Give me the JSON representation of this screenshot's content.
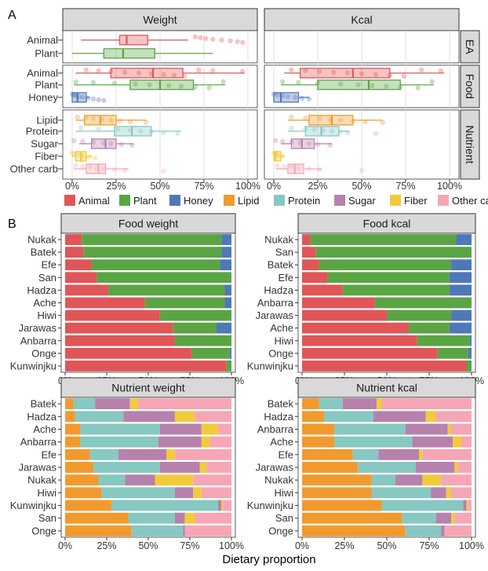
{
  "figure": {
    "panel_a_label": "A",
    "panel_b_label": "B",
    "x_axis_title": "Dietary proportion"
  },
  "colors": {
    "Animal": "#E05658",
    "Plant": "#5BA444",
    "Honey": "#4F78B6",
    "Lipid": "#F29A2E",
    "Protein": "#87C8C2",
    "Sugar": "#B781AE",
    "Fiber": "#F2CB3B",
    "Other carb": "#F6A6B5"
  },
  "legend": [
    "Animal",
    "Plant",
    "Honey",
    "Lipid",
    "Protein",
    "Sugar",
    "Fiber",
    "Other carb"
  ],
  "chart_data": [
    {
      "type": "boxplot",
      "panel": "A",
      "columns": [
        "Weight",
        "Kcal"
      ],
      "row_groups": [
        "EA",
        "Food",
        "Nutrient"
      ],
      "x_ticks": [
        "0%",
        "25%",
        "50%",
        "75%",
        "100%"
      ],
      "xlim": [
        0,
        1
      ],
      "grid": true,
      "groups": [
        {
          "name": "EA",
          "rows": [
            {
              "label": "Animal",
              "color_key": "Animal",
              "Weight": {
                "min": 0.05,
                "q1": 0.27,
                "med": 0.31,
                "q3": 0.43,
                "max": 0.66,
                "points": [
                  0.7,
                  0.73,
                  0.76,
                  0.8,
                  0.85,
                  0.9,
                  0.94,
                  0.97
                ]
              },
              "Kcal": null
            },
            {
              "label": "Plant",
              "color_key": "Plant",
              "Weight": {
                "min": 0.0,
                "q1": 0.18,
                "med": 0.29,
                "q3": 0.47,
                "max": 0.8,
                "points": []
              },
              "Kcal": null
            }
          ]
        },
        {
          "name": "Food",
          "rows": [
            {
              "label": "Animal",
              "color_key": "Animal",
              "Weight": {
                "min": 0.02,
                "q1": 0.22,
                "med": 0.46,
                "q3": 0.63,
                "max": 0.98,
                "points": [
                  0.08,
                  0.15,
                  0.22,
                  0.3,
                  0.38,
                  0.45,
                  0.52,
                  0.58,
                  0.64,
                  0.72,
                  0.8,
                  0.97
                ]
              },
              "Kcal": {
                "min": 0.06,
                "q1": 0.15,
                "med": 0.45,
                "q3": 0.66,
                "max": 0.97,
                "points": [
                  0.1,
                  0.18,
                  0.26,
                  0.34,
                  0.42,
                  0.5,
                  0.58,
                  0.66,
                  0.74,
                  0.84,
                  0.95
                ]
              }
            },
            {
              "label": "Plant",
              "color_key": "Plant",
              "Weight": {
                "min": 0.01,
                "q1": 0.33,
                "med": 0.5,
                "q3": 0.69,
                "max": 0.87,
                "points": [
                  0.02,
                  0.12,
                  0.24,
                  0.36,
                  0.44,
                  0.55,
                  0.62,
                  0.7,
                  0.78,
                  0.86
                ]
              },
              "Kcal": {
                "min": 0.04,
                "q1": 0.25,
                "med": 0.54,
                "q3": 0.72,
                "max": 0.91,
                "points": [
                  0.05,
                  0.14,
                  0.25,
                  0.38,
                  0.48,
                  0.56,
                  0.64,
                  0.72,
                  0.82,
                  0.9
                ]
              }
            },
            {
              "label": "Honey",
              "color_key": "Honey",
              "Weight": {
                "min": 0.0,
                "q1": 0.0,
                "med": 0.03,
                "q3": 0.08,
                "max": 0.1,
                "points": [
                  0.0,
                  0.01,
                  0.02,
                  0.04,
                  0.06,
                  0.09,
                  0.12,
                  0.15,
                  0.18
                ]
              },
              "Kcal": {
                "min": 0.0,
                "q1": 0.0,
                "med": 0.04,
                "q3": 0.14,
                "max": 0.2,
                "points": [
                  0.0,
                  0.02,
                  0.05,
                  0.08,
                  0.12,
                  0.16,
                  0.2
                ]
              }
            }
          ]
        },
        {
          "name": "Nutrient",
          "rows": [
            {
              "label": "Lipid",
              "color_key": "Lipid",
              "Weight": {
                "min": 0.02,
                "q1": 0.07,
                "med": 0.16,
                "q3": 0.25,
                "max": 0.42,
                "points": [
                  0.03,
                  0.08,
                  0.12,
                  0.17,
                  0.22,
                  0.27,
                  0.33,
                  0.42
                ]
              },
              "Kcal": {
                "min": 0.08,
                "q1": 0.2,
                "med": 0.33,
                "q3": 0.45,
                "max": 0.62,
                "points": [
                  0.1,
                  0.18,
                  0.26,
                  0.32,
                  0.38,
                  0.45,
                  0.52,
                  0.62
                ]
              }
            },
            {
              "label": "Protein",
              "color_key": "Protein",
              "Weight": {
                "min": 0.02,
                "q1": 0.24,
                "med": 0.34,
                "q3": 0.45,
                "max": 0.62,
                "points": [
                  0.05,
                  0.15,
                  0.26,
                  0.33,
                  0.39,
                  0.45,
                  0.52,
                  0.6
                ]
              },
              "Kcal": {
                "min": 0.08,
                "q1": 0.18,
                "med": 0.27,
                "q3": 0.37,
                "max": 0.43,
                "points": [
                  0.1,
                  0.18,
                  0.23,
                  0.28,
                  0.33,
                  0.38,
                  0.42,
                  0.58
                ]
              }
            },
            {
              "label": "Sugar",
              "color_key": "Sugar",
              "Weight": {
                "min": 0.04,
                "q1": 0.11,
                "med": 0.19,
                "q3": 0.25,
                "max": 0.35,
                "points": [
                  0.01,
                  0.06,
                  0.12,
                  0.18,
                  0.22,
                  0.28,
                  0.34
                ]
              },
              "Kcal": {
                "min": 0.04,
                "q1": 0.1,
                "med": 0.16,
                "q3": 0.23,
                "max": 0.33,
                "points": [
                  0.01,
                  0.05,
                  0.1,
                  0.15,
                  0.2,
                  0.25,
                  0.32
                ]
              }
            },
            {
              "label": "Fiber",
              "color_key": "Fiber",
              "Weight": {
                "min": 0.0,
                "q1": 0.02,
                "med": 0.05,
                "q3": 0.08,
                "max": 0.11,
                "points": [
                  0.0,
                  0.01,
                  0.03,
                  0.05,
                  0.07,
                  0.1,
                  0.13
                ]
              },
              "Kcal": {
                "min": 0.0,
                "q1": 0.0,
                "med": 0.01,
                "q3": 0.04,
                "max": 0.06,
                "points": [
                  0.0,
                  0.01,
                  0.02,
                  0.03,
                  0.05
                ]
              }
            },
            {
              "label": "Other carb",
              "color_key": "Other carb",
              "Weight": {
                "min": 0.01,
                "q1": 0.08,
                "med": 0.15,
                "q3": 0.19,
                "max": 0.32,
                "points": [
                  0.02,
                  0.06,
                  0.1,
                  0.14,
                  0.18,
                  0.24,
                  0.3,
                  0.52
                ]
              },
              "Kcal": {
                "min": 0.01,
                "q1": 0.08,
                "med": 0.12,
                "q3": 0.17,
                "max": 0.27,
                "points": [
                  0.02,
                  0.06,
                  0.1,
                  0.14,
                  0.2,
                  0.26,
                  0.5
                ]
              }
            }
          ]
        }
      ]
    },
    {
      "type": "stacked-bar",
      "panel": "B",
      "title": "Food weight",
      "series": [
        "Animal",
        "Plant",
        "Honey"
      ],
      "rows": [
        {
          "label": "Nukak",
          "values": [
            0.1,
            0.84,
            0.06
          ]
        },
        {
          "label": "Batek",
          "values": [
            0.11,
            0.83,
            0.06
          ]
        },
        {
          "label": "Efe",
          "values": [
            0.16,
            0.77,
            0.07
          ]
        },
        {
          "label": "San",
          "values": [
            0.19,
            0.81,
            0.0
          ]
        },
        {
          "label": "Hadza",
          "values": [
            0.26,
            0.7,
            0.04
          ]
        },
        {
          "label": "Ache",
          "values": [
            0.48,
            0.48,
            0.04
          ]
        },
        {
          "label": "Hiwi",
          "values": [
            0.57,
            0.43,
            0.0
          ]
        },
        {
          "label": "Jarawas",
          "values": [
            0.65,
            0.26,
            0.09
          ]
        },
        {
          "label": "Anbarra",
          "values": [
            0.66,
            0.34,
            0.0
          ]
        },
        {
          "label": "Onge",
          "values": [
            0.76,
            0.23,
            0.01
          ]
        },
        {
          "label": "Kunwinjku",
          "values": [
            0.97,
            0.03,
            0.0
          ]
        }
      ],
      "x_ticks": [
        "0%",
        "25%",
        "50%",
        "75%",
        "100%"
      ]
    },
    {
      "type": "stacked-bar",
      "panel": "B",
      "title": "Food kcal",
      "series": [
        "Animal",
        "Plant",
        "Honey"
      ],
      "rows": [
        {
          "label": "Nukak",
          "values": [
            0.05,
            0.86,
            0.09
          ]
        },
        {
          "label": "San",
          "values": [
            0.08,
            0.92,
            0.0
          ]
        },
        {
          "label": "Batek",
          "values": [
            0.1,
            0.78,
            0.12
          ]
        },
        {
          "label": "Efe",
          "values": [
            0.15,
            0.72,
            0.13
          ]
        },
        {
          "label": "Hadza",
          "values": [
            0.24,
            0.63,
            0.13
          ]
        },
        {
          "label": "Anbarra",
          "values": [
            0.43,
            0.57,
            0.0
          ]
        },
        {
          "label": "Jarawas",
          "values": [
            0.5,
            0.38,
            0.12
          ]
        },
        {
          "label": "Ache",
          "values": [
            0.63,
            0.24,
            0.13
          ]
        },
        {
          "label": "Hiwi",
          "values": [
            0.68,
            0.31,
            0.01
          ]
        },
        {
          "label": "Onge",
          "values": [
            0.8,
            0.18,
            0.02
          ]
        },
        {
          "label": "Kunwinjku",
          "values": [
            0.97,
            0.03,
            0.0
          ]
        }
      ],
      "x_ticks": [
        "0%",
        "25%",
        "50%",
        "75%",
        "100%"
      ]
    },
    {
      "type": "stacked-bar",
      "panel": "B",
      "title": "Nutrient weight",
      "series": [
        "Lipid",
        "Protein",
        "Sugar",
        "Fiber",
        "Other carb"
      ],
      "rows": [
        {
          "label": "Batek",
          "values": [
            0.05,
            0.13,
            0.21,
            0.05,
            0.56
          ]
        },
        {
          "label": "Hadza",
          "values": [
            0.06,
            0.29,
            0.31,
            0.12,
            0.22
          ]
        },
        {
          "label": "Ache",
          "values": [
            0.09,
            0.48,
            0.25,
            0.1,
            0.08
          ]
        },
        {
          "label": "Anbarra",
          "values": [
            0.09,
            0.47,
            0.26,
            0.05,
            0.13
          ]
        },
        {
          "label": "Efe",
          "values": [
            0.15,
            0.17,
            0.29,
            0.05,
            0.34
          ]
        },
        {
          "label": "Jarawas",
          "values": [
            0.17,
            0.4,
            0.24,
            0.04,
            0.15
          ]
        },
        {
          "label": "Nukak",
          "values": [
            0.2,
            0.16,
            0.18,
            0.23,
            0.23
          ]
        },
        {
          "label": "Hiwi",
          "values": [
            0.22,
            0.44,
            0.11,
            0.05,
            0.18
          ]
        },
        {
          "label": "Kunwinjku",
          "values": [
            0.28,
            0.64,
            0.02,
            0.01,
            0.05
          ]
        },
        {
          "label": "San",
          "values": [
            0.38,
            0.28,
            0.06,
            0.06,
            0.22
          ]
        },
        {
          "label": "Onge",
          "values": [
            0.4,
            0.31,
            0.01,
            0.0,
            0.28
          ]
        }
      ],
      "x_ticks": [
        "0%",
        "25%",
        "50%",
        "75%",
        "100%"
      ]
    },
    {
      "type": "stacked-bar",
      "panel": "B",
      "title": "Nutrient kcal",
      "series": [
        "Lipid",
        "Protein",
        "Sugar",
        "Fiber",
        "Other carb"
      ],
      "rows": [
        {
          "label": "Batek",
          "values": [
            0.1,
            0.14,
            0.2,
            0.03,
            0.53
          ]
        },
        {
          "label": "Hadza",
          "values": [
            0.13,
            0.29,
            0.31,
            0.06,
            0.21
          ]
        },
        {
          "label": "Anbarra",
          "values": [
            0.19,
            0.42,
            0.25,
            0.02,
            0.12
          ]
        },
        {
          "label": "Ache",
          "values": [
            0.19,
            0.46,
            0.24,
            0.05,
            0.06
          ]
        },
        {
          "label": "Efe",
          "values": [
            0.3,
            0.15,
            0.24,
            0.02,
            0.29
          ]
        },
        {
          "label": "Jarawas",
          "values": [
            0.33,
            0.34,
            0.23,
            0.02,
            0.08
          ]
        },
        {
          "label": "Nukak",
          "values": [
            0.41,
            0.14,
            0.16,
            0.11,
            0.18
          ]
        },
        {
          "label": "Hiwi",
          "values": [
            0.41,
            0.35,
            0.09,
            0.03,
            0.12
          ]
        },
        {
          "label": "Kunwinjku",
          "values": [
            0.47,
            0.48,
            0.02,
            0.01,
            0.02
          ]
        },
        {
          "label": "San",
          "values": [
            0.59,
            0.2,
            0.09,
            0.02,
            0.1
          ]
        },
        {
          "label": "Onge",
          "values": [
            0.61,
            0.21,
            0.02,
            0.0,
            0.16
          ]
        }
      ],
      "x_ticks": [
        "0%",
        "25%",
        "50%",
        "75%",
        "100%"
      ]
    }
  ]
}
